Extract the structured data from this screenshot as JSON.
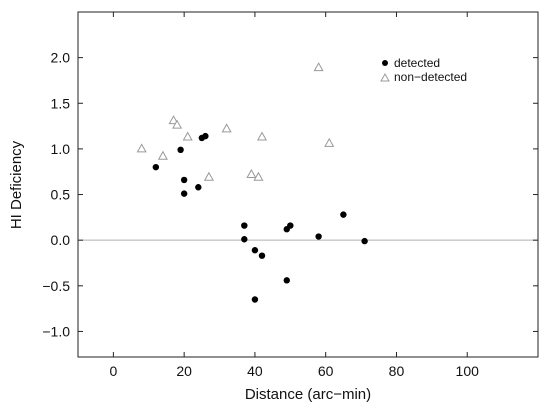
{
  "chart_data": {
    "type": "scatter",
    "xlabel": "Distance (arc−min)",
    "ylabel": "HI Deficiency",
    "xlim": [
      -10,
      120
    ],
    "ylim": [
      -1.28,
      2.5
    ],
    "xticks": [
      0,
      20,
      40,
      60,
      80,
      100
    ],
    "yticks": [
      -1.0,
      -0.5,
      0.0,
      0.5,
      1.0,
      1.5,
      2.0
    ],
    "xtick_labels": [
      "0",
      "20",
      "40",
      "60",
      "80",
      "100"
    ],
    "ytick_labels": [
      "−1.0",
      "−0.5",
      "0.0",
      "0.5",
      "1.0",
      "1.5",
      "2.0"
    ],
    "reference_line_y": 0,
    "grid": false,
    "legend_position": "top-right",
    "series": [
      {
        "name": "detected",
        "marker": "filled-circle",
        "color": "#000000",
        "points": [
          [
            12,
            0.8
          ],
          [
            19,
            0.99
          ],
          [
            20,
            0.66
          ],
          [
            20,
            0.51
          ],
          [
            24,
            0.58
          ],
          [
            25,
            1.12
          ],
          [
            26,
            1.14
          ],
          [
            37,
            0.16
          ],
          [
            37,
            0.01
          ],
          [
            40,
            -0.11
          ],
          [
            42,
            -0.17
          ],
          [
            40,
            -0.65
          ],
          [
            49,
            0.12
          ],
          [
            50,
            0.16
          ],
          [
            49,
            -0.44
          ],
          [
            58,
            0.04
          ],
          [
            65,
            0.28
          ],
          [
            71,
            -0.01
          ]
        ]
      },
      {
        "name": "non−detected",
        "marker": "open-triangle",
        "color": "#9a9a9a",
        "points": [
          [
            8,
            1.0
          ],
          [
            14,
            0.92
          ],
          [
            17,
            1.31
          ],
          [
            18,
            1.26
          ],
          [
            21,
            1.13
          ],
          [
            27,
            0.69
          ],
          [
            32,
            1.22
          ],
          [
            39,
            0.72
          ],
          [
            41,
            0.69
          ],
          [
            42,
            1.13
          ],
          [
            58,
            1.89
          ],
          [
            61,
            1.06
          ]
        ]
      }
    ]
  }
}
